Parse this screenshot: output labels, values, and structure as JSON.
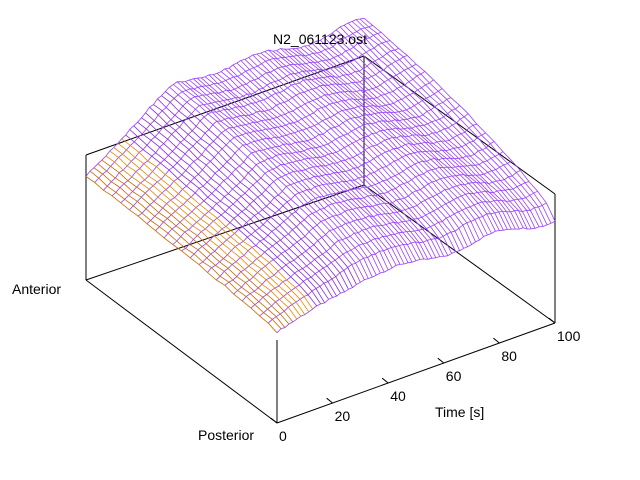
{
  "chart_data": {
    "type": "surface-3d-wireframe",
    "title": "N2_061123.ost",
    "x_axis": {
      "label": "Time [s]",
      "range": [
        0,
        100
      ],
      "ticks": [
        "0",
        "20",
        "40",
        "60",
        "80",
        "100"
      ]
    },
    "y_axis": {
      "labels": [
        "Anterior",
        "Posterior"
      ]
    },
    "colors": {
      "low": "#cc6a00",
      "mid": "#e68a00",
      "high": "#8a2be2",
      "top": "#9a40ff"
    }
  }
}
